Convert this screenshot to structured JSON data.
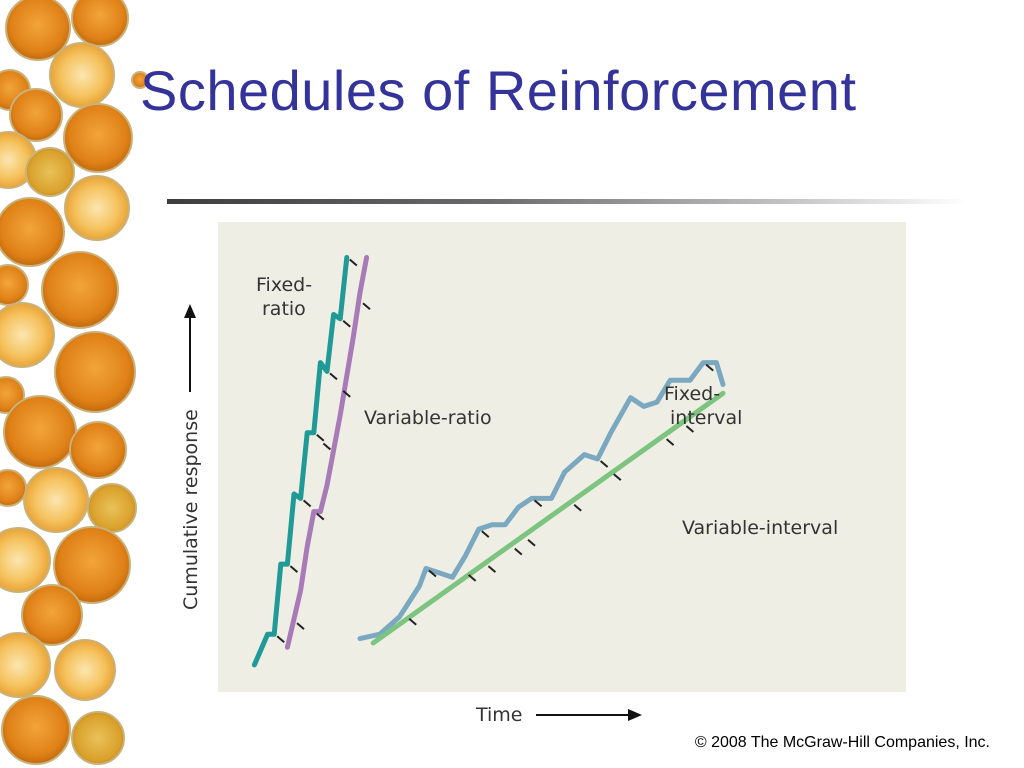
{
  "slide": {
    "title": "Schedules of Reinforcement",
    "copyright": "© 2008 The McGraw-Hill Companies, Inc."
  },
  "colors": {
    "title": "#333399",
    "panel": "#efeee4",
    "fixed_ratio": "#1f9a96",
    "variable_ratio": "#a87ab8",
    "fixed_interval": "#7aa8c0",
    "variable_interval": "#7cc47f"
  },
  "chart_data": {
    "type": "line",
    "xlabel": "Time",
    "ylabel": "Cumulative response",
    "xlim": [
      0,
      100
    ],
    "ylim": [
      0,
      100
    ],
    "grid": false,
    "tick_labels": false,
    "axis_arrows": true,
    "series": [
      {
        "name": "Fixed-ratio",
        "label_lines": [
          "Fixed-",
          "ratio"
        ],
        "color": "#1f9a96",
        "points": [
          [
            4,
            3
          ],
          [
            6,
            10
          ],
          [
            7,
            10
          ],
          [
            8,
            26
          ],
          [
            9,
            26
          ],
          [
            10,
            42
          ],
          [
            11,
            41
          ],
          [
            12,
            56
          ],
          [
            13,
            56
          ],
          [
            14,
            72
          ],
          [
            15,
            70
          ],
          [
            16,
            83
          ],
          [
            17,
            82
          ],
          [
            18,
            96
          ]
        ],
        "reinforcements": [
          [
            7,
            10
          ],
          [
            9,
            26
          ],
          [
            11,
            41
          ],
          [
            13,
            56
          ],
          [
            15,
            70
          ],
          [
            17,
            82
          ],
          [
            18,
            96
          ]
        ]
      },
      {
        "name": "Variable-ratio",
        "label_lines": [
          "Variable-ratio"
        ],
        "color": "#a87ab8",
        "points": [
          [
            9,
            7
          ],
          [
            11,
            20
          ],
          [
            12,
            30
          ],
          [
            13,
            38
          ],
          [
            14,
            38
          ],
          [
            15,
            44
          ],
          [
            16,
            52
          ],
          [
            17,
            60
          ],
          [
            18,
            69
          ],
          [
            19,
            78
          ],
          [
            20,
            88
          ],
          [
            21,
            96
          ]
        ],
        "reinforcements": [
          [
            10,
            13
          ],
          [
            13,
            38
          ],
          [
            14,
            54
          ],
          [
            17,
            66
          ],
          [
            20,
            86
          ]
        ]
      },
      {
        "name": "Fixed-interval",
        "label_lines": [
          "Fixed-",
          "interval"
        ],
        "color": "#7aa8c0",
        "points": [
          [
            20,
            9
          ],
          [
            23,
            10
          ],
          [
            26,
            14
          ],
          [
            29,
            21
          ],
          [
            30,
            25
          ],
          [
            32,
            24
          ],
          [
            34,
            23
          ],
          [
            36,
            28
          ],
          [
            38,
            34
          ],
          [
            40,
            35
          ],
          [
            42,
            35
          ],
          [
            44,
            39
          ],
          [
            46,
            41
          ],
          [
            49,
            41
          ],
          [
            51,
            47
          ],
          [
            54,
            51
          ],
          [
            56,
            50
          ],
          [
            58,
            56
          ],
          [
            61,
            64
          ],
          [
            63,
            62
          ],
          [
            65,
            63
          ],
          [
            67,
            68
          ],
          [
            70,
            68
          ],
          [
            72,
            72
          ],
          [
            74,
            72
          ],
          [
            75,
            67
          ]
        ],
        "reinforcements": [
          [
            30,
            25
          ],
          [
            38,
            34
          ],
          [
            46,
            41
          ],
          [
            56,
            50
          ],
          [
            72,
            72
          ]
        ]
      },
      {
        "name": "Variable-interval",
        "label_lines": [
          "Variable-interval"
        ],
        "color": "#7cc47f",
        "points": [
          [
            22,
            8
          ],
          [
            75,
            65
          ]
        ],
        "reinforcements": [
          [
            27,
            14
          ],
          [
            36,
            24
          ],
          [
            39,
            26
          ],
          [
            43,
            30
          ],
          [
            45,
            32
          ],
          [
            52,
            40
          ],
          [
            58,
            47
          ],
          [
            66,
            55
          ],
          [
            69,
            58
          ]
        ]
      }
    ]
  }
}
